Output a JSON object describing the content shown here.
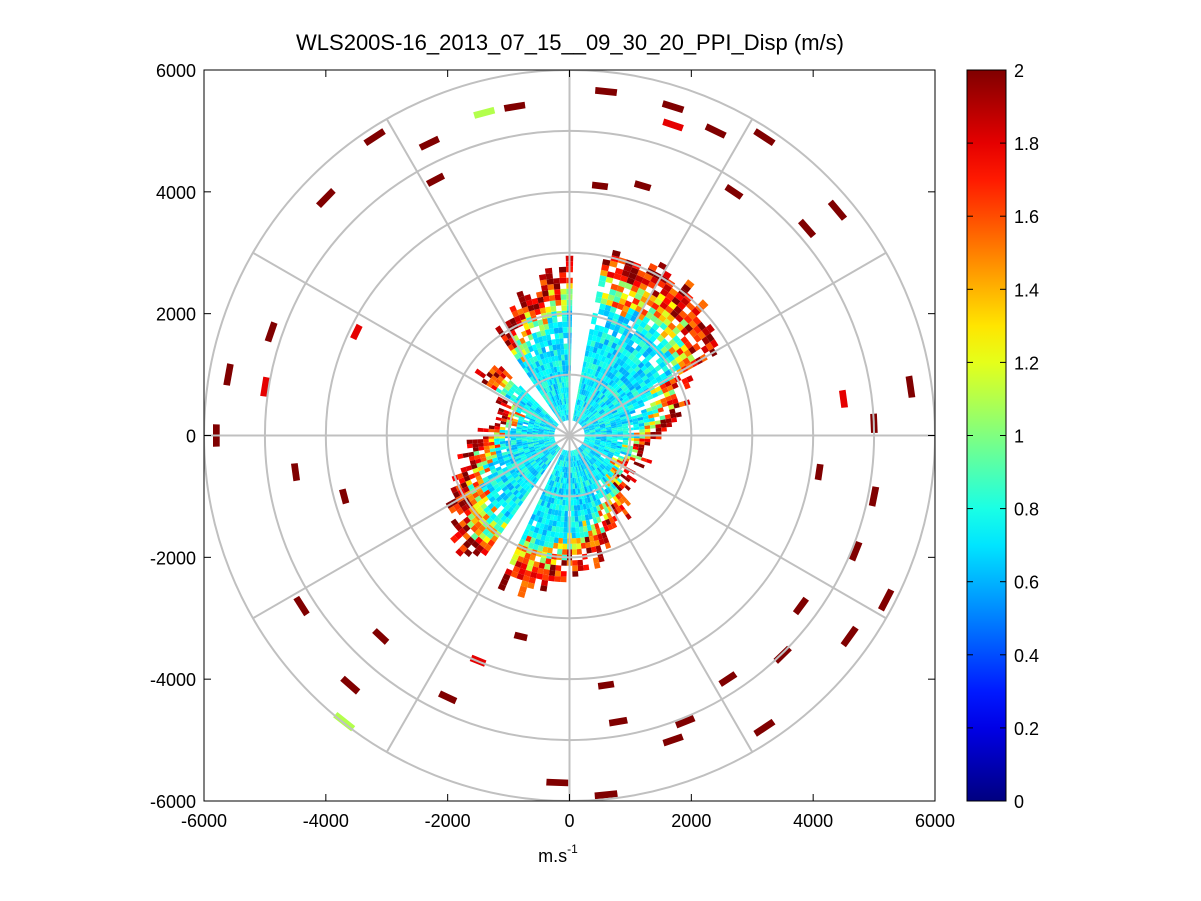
{
  "chart_data": {
    "type": "heatmap",
    "subtype": "polar PPI scan",
    "title": "WLS200S-16_2013_07_15__09_30_20_PPI_Disp (m/s)",
    "xlabel": "m.s",
    "xlabel_superscript": "-1",
    "ylabel": "",
    "xlim": [
      -6000,
      6000
    ],
    "ylim": [
      -6000,
      6000
    ],
    "x_ticks": [
      -6000,
      -4000,
      -2000,
      0,
      2000,
      4000,
      6000
    ],
    "y_ticks": [
      6000,
      4000,
      2000,
      0,
      -2000,
      -4000,
      -6000
    ],
    "x_tick_labels": [
      "-6000",
      "-4000",
      "-2000",
      "0",
      "2000",
      "4000",
      "6000"
    ],
    "y_tick_labels": [
      "6000",
      "4000",
      "2000",
      "0",
      "-2000",
      "-4000",
      "-6000"
    ],
    "polar_grid": {
      "ring_ranges": [
        1000,
        2000,
        3000,
        4000,
        5000,
        6000
      ],
      "spoke_angles_deg": [
        0,
        30,
        60,
        90,
        120,
        150,
        180,
        210,
        240,
        270,
        300,
        330
      ]
    },
    "colorbar": {
      "min": 0,
      "max": 2,
      "colormap": "jet",
      "ticks": [
        0,
        0.2,
        0.4,
        0.6,
        0.8,
        1,
        1.2,
        1.4,
        1.6,
        1.8,
        2
      ],
      "tick_labels": [
        "0",
        "0.2",
        "0.4",
        "0.6",
        "0.8",
        "1",
        "1.2",
        "1.4",
        "1.6",
        "1.8",
        "2"
      ]
    },
    "dense_region": {
      "description": "Values near 0.6-0.8 m/s inside ~1500 m range, rising to 2 m/s near 2000-3000 m; sparse returns of 2 m/s beyond",
      "gap_sectors_deg": [
        [
          0,
          10
        ],
        [
          205,
          215
        ],
        [
          315,
          325
        ]
      ]
    },
    "sample_sparse_returns": [
      {
        "x": -3200,
        "y": 4900,
        "value": 2
      },
      {
        "x": -2300,
        "y": 4800,
        "value": 2
      },
      {
        "x": -1400,
        "y": 5300,
        "value": 1.1
      },
      {
        "x": -900,
        "y": 5400,
        "value": 2
      },
      {
        "x": 600,
        "y": 5650,
        "value": 2
      },
      {
        "x": 1700,
        "y": 5400,
        "value": 2
      },
      {
        "x": 1700,
        "y": 5100,
        "value": 1.8
      },
      {
        "x": 2400,
        "y": 5000,
        "value": 2
      },
      {
        "x": 3200,
        "y": 4900,
        "value": 2
      },
      {
        "x": 4400,
        "y": 3700,
        "value": 2
      },
      {
        "x": -4000,
        "y": 3900,
        "value": 2
      },
      {
        "x": -2200,
        "y": 4200,
        "value": 2
      },
      {
        "x": 500,
        "y": 4100,
        "value": 2
      },
      {
        "x": 1200,
        "y": 4100,
        "value": 2
      },
      {
        "x": 2700,
        "y": 4000,
        "value": 2
      },
      {
        "x": 3900,
        "y": 3400,
        "value": 2
      },
      {
        "x": -4900,
        "y": 1700,
        "value": 2
      },
      {
        "x": -5600,
        "y": 1000,
        "value": 2
      },
      {
        "x": -5000,
        "y": 800,
        "value": 1.8
      },
      {
        "x": -3500,
        "y": 1700,
        "value": 1.8
      },
      {
        "x": 4500,
        "y": 600,
        "value": 1.8
      },
      {
        "x": 5600,
        "y": 800,
        "value": 2
      },
      {
        "x": 5000,
        "y": 200,
        "value": 2
      },
      {
        "x": -5800,
        "y": 0,
        "value": 2
      },
      {
        "x": -4500,
        "y": -600,
        "value": 2
      },
      {
        "x": -3700,
        "y": -1000,
        "value": 2
      },
      {
        "x": 4100,
        "y": -600,
        "value": 2
      },
      {
        "x": 5000,
        "y": -1000,
        "value": 2
      },
      {
        "x": 4700,
        "y": -1900,
        "value": 2
      },
      {
        "x": -4400,
        "y": -2800,
        "value": 2
      },
      {
        "x": -3100,
        "y": -3300,
        "value": 2
      },
      {
        "x": 3800,
        "y": -2800,
        "value": 2
      },
      {
        "x": 5200,
        "y": -2700,
        "value": 2
      },
      {
        "x": 4600,
        "y": -3300,
        "value": 2
      },
      {
        "x": -1500,
        "y": -3700,
        "value": 1.8
      },
      {
        "x": -800,
        "y": -3300,
        "value": 2
      },
      {
        "x": -3600,
        "y": -4100,
        "value": 2
      },
      {
        "x": -2000,
        "y": -4300,
        "value": 2
      },
      {
        "x": 600,
        "y": -4100,
        "value": 2
      },
      {
        "x": 2600,
        "y": -4000,
        "value": 2
      },
      {
        "x": 3500,
        "y": -3600,
        "value": 2
      },
      {
        "x": -3700,
        "y": -4700,
        "value": 1.1
      },
      {
        "x": 800,
        "y": -4700,
        "value": 2
      },
      {
        "x": 1900,
        "y": -4700,
        "value": 2
      },
      {
        "x": 3200,
        "y": -4800,
        "value": 2
      },
      {
        "x": -200,
        "y": -5700,
        "value": 2
      },
      {
        "x": 600,
        "y": -5900,
        "value": 2
      },
      {
        "x": 1700,
        "y": -5000,
        "value": 2
      }
    ]
  }
}
